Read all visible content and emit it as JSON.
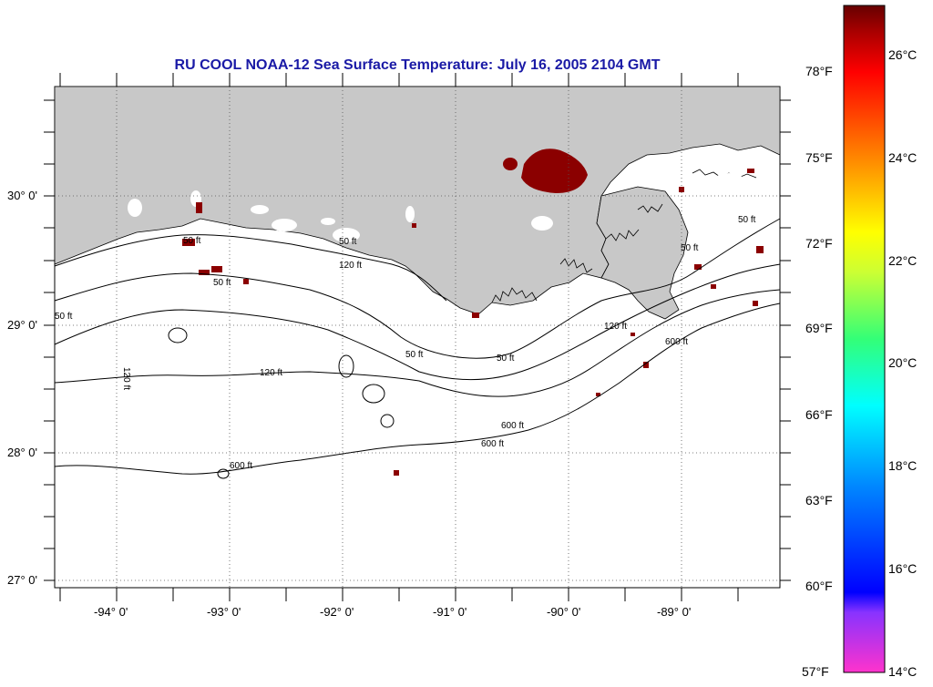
{
  "title": "RU COOL  NOAA-12  Sea Surface Temperature:  July 16, 2005 2104 GMT",
  "longitude_labels": [
    "-94° 0'",
    "-93° 0'",
    "-92° 0'",
    "-91° 0'",
    "-90° 0'",
    "-89° 0'"
  ],
  "latitude_labels": [
    "30° 0'",
    "29° 0'",
    "28° 0'",
    "27° 0'"
  ],
  "contour_labels": [
    "50 ft",
    "50 ft",
    "50 ft",
    "50 ft",
    "50 ft",
    "50 ft",
    "120 ft",
    "120 ft",
    "120 ft",
    "120 ft",
    "600 ft",
    "600 ft",
    "600 ft",
    "600 ft",
    "50 ft",
    "50 ft"
  ],
  "colorbar": {
    "fahrenheit_labels": [
      "78°F",
      "75°F",
      "72°F",
      "69°F",
      "66°F",
      "63°F",
      "60°F",
      "57°F"
    ],
    "celsius_labels": [
      "26°C",
      "24°C",
      "22°C",
      "20°C",
      "18°C",
      "16°C",
      "14°C"
    ],
    "colors": [
      "#ff33cc",
      "#8833ff",
      "#0000ff",
      "#0088ff",
      "#00ffff",
      "#33ff77",
      "#ccff33",
      "#ffff00",
      "#ff8800",
      "#ff0000",
      "#aa0000",
      "#660000"
    ]
  },
  "colors": {
    "land": "#c8c8c8",
    "title": "#1a1aa6",
    "sst_patch": "#8b0000"
  }
}
